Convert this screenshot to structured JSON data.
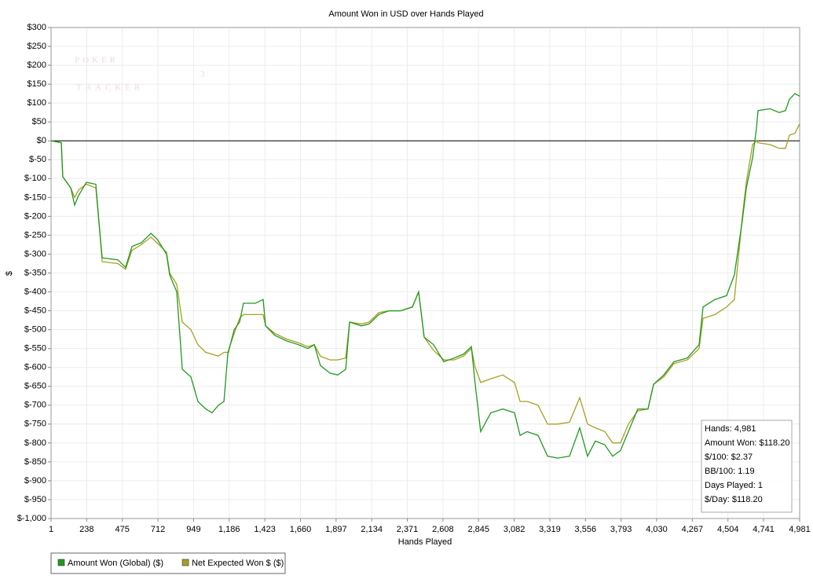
{
  "chart_data": {
    "type": "line",
    "title": "Amount Won in USD over Hands Played",
    "x_label": "Hands Played",
    "y_label": "$",
    "watermark": [
      "POKER",
      "TRACKER",
      "3"
    ],
    "info_box": [
      "Hands: 4,981",
      "Amount Won: $118.20",
      "$/100: $2.37",
      "BB/100: 1.19",
      "Days Played: 1",
      "$/Day: $118.20"
    ],
    "grid": true,
    "legend": "bottom-left",
    "xlim": [
      1,
      4981
    ],
    "ylim": [
      -1000,
      300
    ],
    "xticks": [
      1,
      238,
      475,
      712,
      949,
      {
        "value": 1186,
        "label": "1,186"
      },
      {
        "value": 1423,
        "label": "1,423"
      },
      {
        "value": 1660,
        "label": "1,660"
      },
      {
        "value": 1897,
        "label": "1,897"
      },
      {
        "value": 2134,
        "label": "2,134"
      },
      {
        "value": 2371,
        "label": "2,371"
      },
      {
        "value": 2608,
        "label": "2,608"
      },
      {
        "value": 2845,
        "label": "2,845"
      },
      {
        "value": 3082,
        "label": "3,082"
      },
      {
        "value": 3319,
        "label": "3,319"
      },
      {
        "value": 3556,
        "label": "3,556"
      },
      {
        "value": 3793,
        "label": "3,793"
      },
      {
        "value": 4030,
        "label": "4,030"
      },
      {
        "value": 4267,
        "label": "4,267"
      },
      {
        "value": 4504,
        "label": "4,504"
      },
      {
        "value": 4741,
        "label": "4,741"
      },
      {
        "value": 4981,
        "label": "4,981"
      }
    ],
    "yticks": [
      {
        "value": 300,
        "label": "$300"
      },
      {
        "value": 250,
        "label": "$250"
      },
      {
        "value": 200,
        "label": "$200"
      },
      {
        "value": 150,
        "label": "$150"
      },
      {
        "value": 100,
        "label": "$100"
      },
      {
        "value": 50,
        "label": "$50"
      },
      {
        "value": 0,
        "label": "$0"
      },
      {
        "value": -50,
        "label": "$-50"
      },
      {
        "value": -100,
        "label": "$-100"
      },
      {
        "value": -150,
        "label": "$-150"
      },
      {
        "value": -200,
        "label": "$-200"
      },
      {
        "value": -250,
        "label": "$-250"
      },
      {
        "value": -300,
        "label": "$-300"
      },
      {
        "value": -350,
        "label": "$-350"
      },
      {
        "value": -400,
        "label": "$-400"
      },
      {
        "value": -450,
        "label": "$-450"
      },
      {
        "value": -500,
        "label": "$-500"
      },
      {
        "value": -550,
        "label": "$-550"
      },
      {
        "value": -600,
        "label": "$-600"
      },
      {
        "value": -650,
        "label": "$-650"
      },
      {
        "value": -700,
        "label": "$-700"
      },
      {
        "value": -750,
        "label": "$-750"
      },
      {
        "value": -800,
        "label": "$-800"
      },
      {
        "value": -850,
        "label": "$-850"
      },
      {
        "value": -900,
        "label": "$-900"
      },
      {
        "value": -950,
        "label": "$-950"
      },
      {
        "value": -1000,
        "label": "$-1,000"
      }
    ],
    "x": [
      1,
      69,
      79,
      132,
      158,
      184,
      236,
      299,
      325,
      341,
      445,
      497,
      539,
      602,
      665,
      706,
      769,
      790,
      837,
      874,
      931,
      978,
      1030,
      1072,
      1114,
      1151,
      1177,
      1219,
      1255,
      1281,
      1360,
      1412,
      1428,
      1490,
      1569,
      1647,
      1710,
      1752,
      1793,
      1856,
      1908,
      1961,
      1987,
      2065,
      2117,
      2180,
      2248,
      2326,
      2405,
      2446,
      2483,
      2546,
      2614,
      2682,
      2744,
      2797,
      2823,
      2859,
      2927,
      3006,
      3084,
      3121,
      3168,
      3241,
      3304,
      3372,
      3450,
      3518,
      3570,
      3622,
      3685,
      3737,
      3789,
      3842,
      3904,
      3972,
      4009,
      4077,
      4145,
      4234,
      4312,
      4338,
      4417,
      4495,
      4547,
      4600,
      4626,
      4668,
      4694,
      4704,
      4783,
      4845,
      4887,
      4913,
      4950,
      4981
    ],
    "series": [
      {
        "name": "Amount Won (Global) ($)",
        "color": "#1f9a1f",
        "values": [
          0,
          -5,
          -95,
          -125,
          -170,
          -145,
          -110,
          -115,
          -240,
          -310,
          -315,
          -335,
          -280,
          -270,
          -245,
          -260,
          -300,
          -355,
          -400,
          -605,
          -625,
          -690,
          -710,
          -720,
          -700,
          -690,
          -565,
          -500,
          -480,
          -430,
          -430,
          -420,
          -490,
          -515,
          -530,
          -540,
          -550,
          -540,
          -595,
          -615,
          -620,
          -605,
          -480,
          -490,
          -485,
          -460,
          -450,
          -450,
          -440,
          -400,
          -520,
          -540,
          -585,
          -575,
          -565,
          -545,
          -645,
          -770,
          -720,
          -710,
          -720,
          -780,
          -770,
          -780,
          -835,
          -840,
          -835,
          -760,
          -835,
          -795,
          -805,
          -835,
          -820,
          -770,
          -710,
          -710,
          -645,
          -620,
          -585,
          -575,
          -540,
          -440,
          -420,
          -410,
          -355,
          -210,
          -125,
          -45,
          35,
          80,
          85,
          75,
          80,
          110,
          125,
          118.2
        ]
      },
      {
        "name": "Net Expected Won $ ($)",
        "color": "#a89f20",
        "values": [
          0,
          -5,
          -95,
          -125,
          -150,
          -130,
          -115,
          -125,
          -240,
          -320,
          -325,
          -340,
          -290,
          -275,
          -255,
          -270,
          -295,
          -350,
          -380,
          -480,
          -500,
          -540,
          -560,
          -565,
          -570,
          -560,
          -560,
          -510,
          -470,
          -460,
          -460,
          -460,
          -490,
          -510,
          -525,
          -535,
          -545,
          -540,
          -570,
          -580,
          -580,
          -575,
          -480,
          -485,
          -480,
          -455,
          -450,
          -450,
          -440,
          -400,
          -520,
          -555,
          -580,
          -580,
          -570,
          -550,
          -600,
          -640,
          -630,
          -620,
          -640,
          -690,
          -690,
          -700,
          -750,
          -750,
          -745,
          -680,
          -750,
          -760,
          -770,
          -800,
          -800,
          -750,
          -715,
          -710,
          -645,
          -625,
          -590,
          -580,
          -550,
          -470,
          -460,
          -440,
          -420,
          -200,
          -110,
          -10,
          0,
          -5,
          -10,
          -20,
          -20,
          15,
          20,
          45
        ]
      }
    ]
  }
}
